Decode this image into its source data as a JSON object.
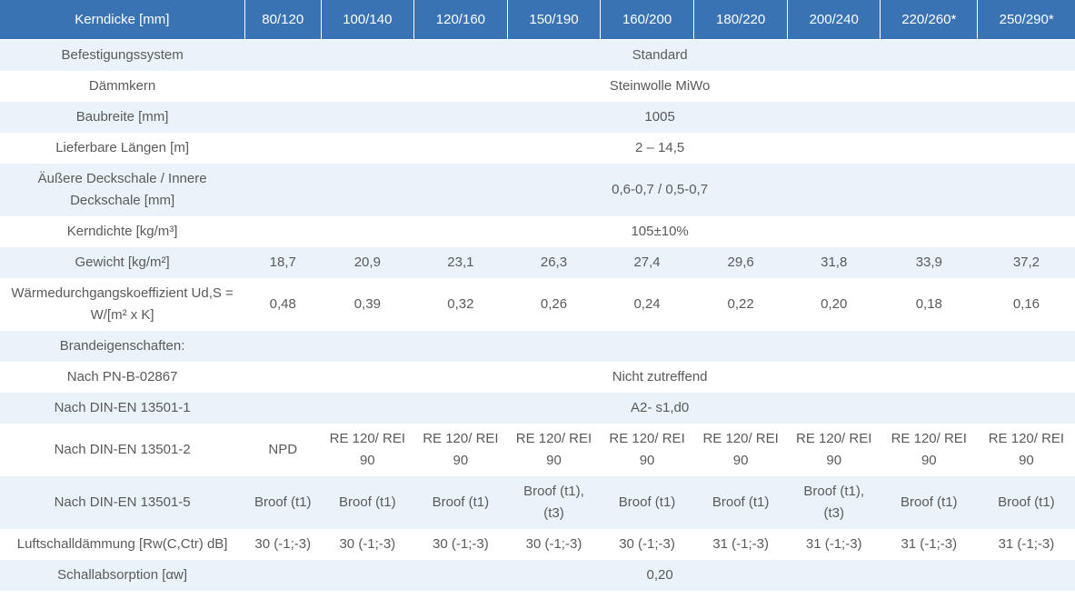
{
  "header": {
    "label": "Kerndicke [mm]",
    "columns": [
      "80/120",
      "100/140",
      "120/160",
      "150/190",
      "160/200",
      "180/220",
      "200/240",
      "220/260*",
      "250/290*"
    ]
  },
  "rows": [
    {
      "label": "Befestigungssystem",
      "span": "Standard"
    },
    {
      "label": "Dämmkern",
      "span": "Steinwolle MiWo"
    },
    {
      "label": "Baubreite [mm]",
      "span": "1005"
    },
    {
      "label": "Lieferbare Längen [m]",
      "span": "2 – 14,5"
    },
    {
      "label": "Äußere Deckschale / Innere Deckschale [mm]",
      "span": "0,6-0,7 / 0,5-0,7"
    },
    {
      "label": "Kerndichte [kg/m³]",
      "span": "105±10%"
    },
    {
      "label": "Gewicht [kg/m²]",
      "values": [
        "18,7",
        "20,9",
        "23,1",
        "26,3",
        "27,4",
        "29,6",
        "31,8",
        "33,9",
        "37,2"
      ]
    },
    {
      "label": "Wärmedurchgangskoeffizient Ud,S = W/[m² x K]",
      "values": [
        "0,48",
        "0,39",
        "0,32",
        "0,26",
        "0,24",
        "0,22",
        "0,20",
        "0,18",
        "0,16"
      ]
    },
    {
      "label": "Brandeigenschaften:",
      "span": ""
    },
    {
      "label": "Nach PN-B-02867",
      "span": "Nicht zutreffend"
    },
    {
      "label": "Nach DIN-EN 13501-1",
      "span": "A2- s1,d0"
    },
    {
      "label": "Nach DIN-EN 13501-2",
      "values": [
        "NPD",
        "RE 120/ REI 90",
        "RE 120/ REI 90",
        "RE 120/ REI 90",
        "RE 120/ REI 90",
        "RE 120/ REI 90",
        "RE 120/ REI 90",
        "RE 120/ REI 90",
        "RE 120/ REI 90"
      ]
    },
    {
      "label": "Nach DIN-EN 13501-5",
      "values": [
        "Broof (t1)",
        "Broof (t1)",
        "Broof (t1)",
        "Broof (t1), (t3)",
        "Broof (t1)",
        "Broof (t1)",
        "Broof (t1), (t3)",
        "Broof (t1)",
        "Broof (t1)"
      ]
    },
    {
      "label": "Luftschalldämmung [Rw(C,Ctr) dB]",
      "values": [
        "30 (-1;-3)",
        "30 (-1;-3)",
        "30 (-1;-3)",
        "30 (-1;-3)",
        "30 (-1;-3)",
        "31 (-1;-3)",
        "31 (-1;-3)",
        "31 (-1;-3)",
        "31 (-1;-3)"
      ]
    },
    {
      "label": "Schallabsorption [αw]",
      "span": "0,20"
    }
  ]
}
